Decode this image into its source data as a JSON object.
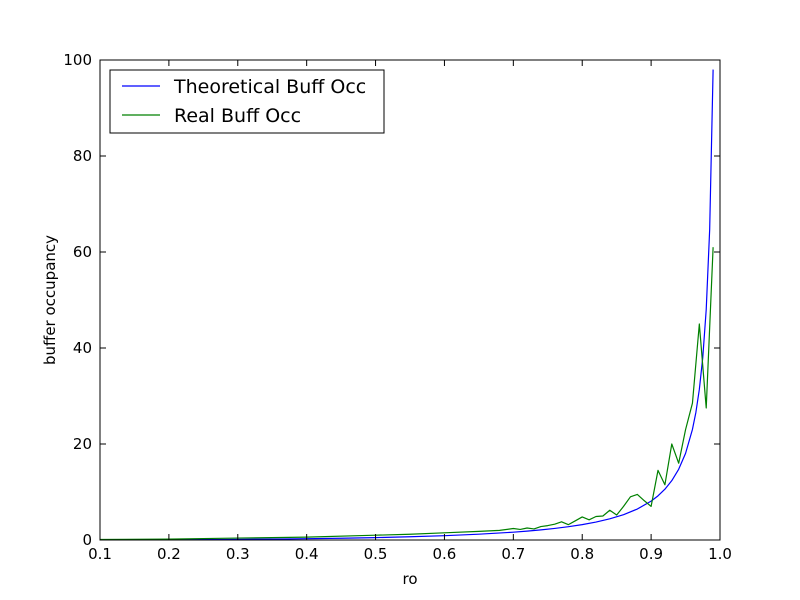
{
  "chart_data": {
    "type": "line",
    "xlabel": "ro",
    "ylabel": "buffer occupancy",
    "xlim": [
      0.1,
      1.0
    ],
    "ylim": [
      0,
      100
    ],
    "xticks": [
      "0.1",
      "0.2",
      "0.3",
      "0.4",
      "0.5",
      "0.6",
      "0.7",
      "0.8",
      "0.9",
      "1.0"
    ],
    "yticks": [
      "0",
      "20",
      "40",
      "60",
      "80",
      "100"
    ],
    "grid": false,
    "legend_position": "top-left",
    "series": [
      {
        "name": "Theoretical Buff Occ",
        "color": "#0000ff",
        "x": [
          0.1,
          0.15,
          0.2,
          0.25,
          0.3,
          0.35,
          0.4,
          0.45,
          0.5,
          0.55,
          0.6,
          0.65,
          0.7,
          0.72,
          0.74,
          0.76,
          0.78,
          0.8,
          0.82,
          0.84,
          0.86,
          0.88,
          0.9,
          0.91,
          0.92,
          0.93,
          0.94,
          0.95,
          0.96,
          0.965,
          0.97,
          0.975,
          0.98,
          0.985,
          0.99
        ],
        "values": [
          0.01,
          0.03,
          0.05,
          0.08,
          0.13,
          0.19,
          0.27,
          0.37,
          0.5,
          0.67,
          0.9,
          1.21,
          1.63,
          1.85,
          2.11,
          2.41,
          2.77,
          3.2,
          3.74,
          4.41,
          5.28,
          6.45,
          8.1,
          9.2,
          10.58,
          12.36,
          14.73,
          18.05,
          23.04,
          26.6,
          31.36,
          38.03,
          48.02,
          64.68,
          98.01
        ]
      },
      {
        "name": "Real Buff Occ",
        "color": "#008000",
        "x": [
          0.1,
          0.2,
          0.3,
          0.4,
          0.5,
          0.55,
          0.6,
          0.65,
          0.68,
          0.7,
          0.71,
          0.72,
          0.73,
          0.74,
          0.75,
          0.76,
          0.77,
          0.78,
          0.79,
          0.8,
          0.81,
          0.82,
          0.83,
          0.84,
          0.85,
          0.86,
          0.87,
          0.88,
          0.89,
          0.9,
          0.91,
          0.92,
          0.93,
          0.94,
          0.95,
          0.96,
          0.97,
          0.98,
          0.99
        ],
        "values": [
          0.1,
          0.2,
          0.4,
          0.6,
          1.0,
          1.2,
          1.5,
          1.8,
          2.0,
          2.4,
          2.2,
          2.5,
          2.3,
          2.8,
          3.0,
          3.3,
          3.8,
          3.2,
          4.0,
          4.8,
          4.2,
          4.9,
          5.0,
          6.2,
          5.2,
          7.0,
          9.0,
          9.5,
          8.2,
          7.0,
          14.5,
          11.5,
          20.0,
          16.0,
          23.0,
          28.5,
          45.0,
          27.5,
          61.0
        ]
      }
    ]
  }
}
